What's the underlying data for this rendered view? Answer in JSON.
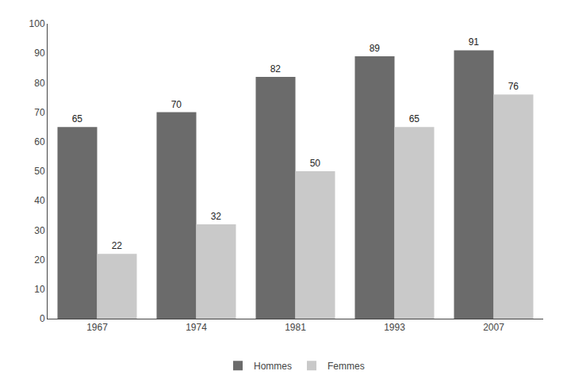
{
  "chart_data": {
    "type": "bar",
    "categories": [
      "1967",
      "1974",
      "1981",
      "1993",
      "2007"
    ],
    "series": [
      {
        "name": "Hommes",
        "color": "#6b6b6b",
        "values": [
          65,
          70,
          82,
          89,
          91
        ]
      },
      {
        "name": "Femmes",
        "color": "#c9c9c9",
        "values": [
          22,
          32,
          50,
          65,
          76
        ]
      }
    ],
    "ylim": [
      0,
      100
    ],
    "yticks": [
      0,
      10,
      20,
      30,
      40,
      50,
      60,
      70,
      80,
      90,
      100
    ],
    "grid": false,
    "legend": "bottom",
    "data_labels": true
  }
}
